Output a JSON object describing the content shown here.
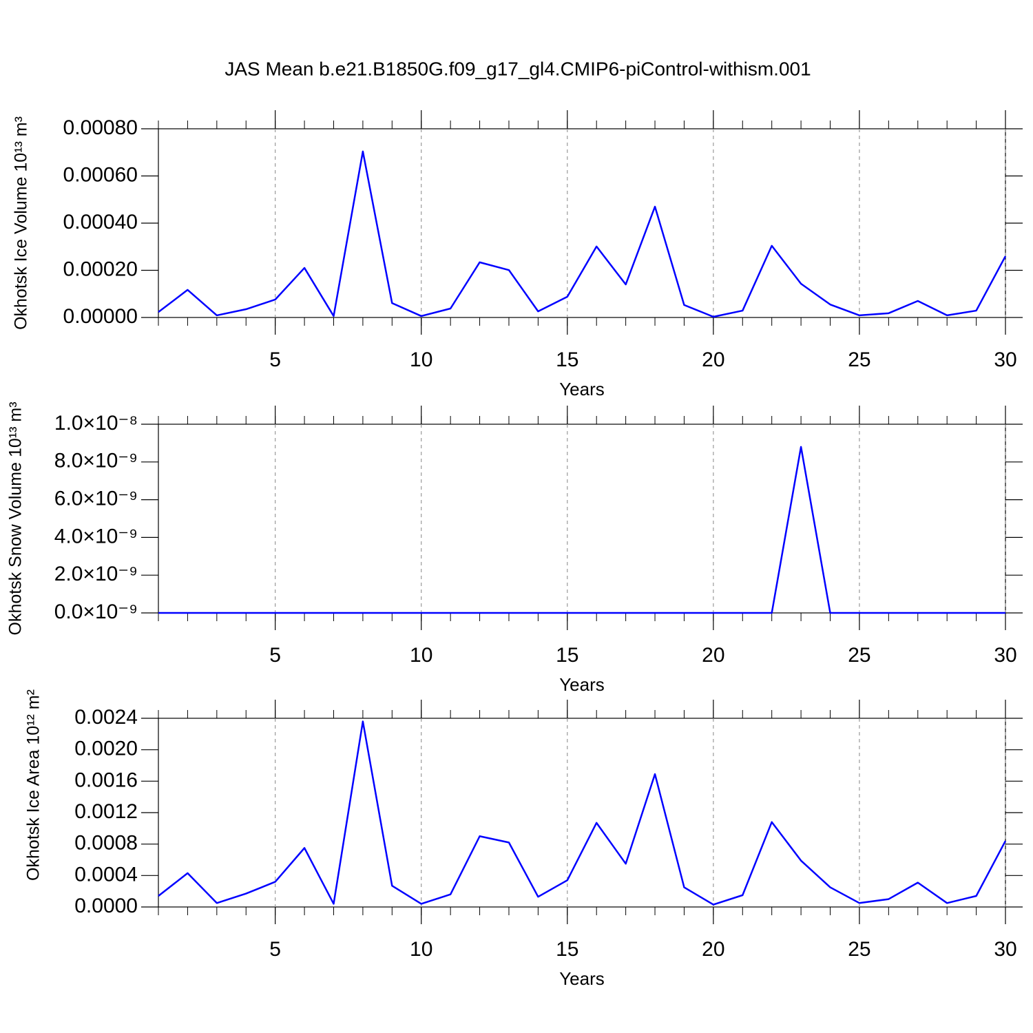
{
  "title": "JAS Mean b.e21.B1850G.f09_g17_gl4.CMIP6-piControl-withism.001",
  "chart_data": [
    {
      "type": "line",
      "y_label": "Okhotsk Ice Volume 10¹³ m³",
      "x_label": "Years",
      "x": [
        1,
        2,
        3,
        4,
        5,
        6,
        7,
        8,
        9,
        10,
        11,
        12,
        13,
        14,
        15,
        16,
        17,
        18,
        19,
        20,
        21,
        22,
        23,
        24,
        25,
        26,
        27,
        28,
        29,
        30
      ],
      "series": [
        {
          "color": "#0000ff",
          "values": [
            2.3e-05,
            0.000117,
            9e-06,
            3.5e-05,
            7.6e-05,
            0.00021,
            6e-06,
            0.000704,
            6.1e-05,
            6e-06,
            3.8e-05,
            0.000234,
            0.000201,
            2.6e-05,
            8.8e-05,
            0.000301,
            0.00014,
            0.00047,
            5.3e-05,
            3e-06,
            2.9e-05,
            0.000304,
            0.000143,
            5.5e-05,
            9e-06,
            1.8e-05,
            7e-05,
            9e-06,
            2.9e-05,
            0.00026
          ]
        }
      ],
      "xlim": [
        1,
        30
      ],
      "xticks": [
        5,
        10,
        15,
        20,
        25,
        30
      ],
      "ylim": [
        0,
        0.0008
      ],
      "yticks": [
        {
          "value": 0,
          "label": "0.00000"
        },
        {
          "value": 0.0002,
          "label": "0.00020"
        },
        {
          "value": 0.0004,
          "label": "0.00040"
        },
        {
          "value": 0.0006,
          "label": "0.00060"
        },
        {
          "value": 0.0008,
          "label": "0.00080"
        }
      ],
      "grid": "x"
    },
    {
      "type": "line",
      "y_label": "Okhotsk Snow Volume 10¹³ m³",
      "x_label": "Years",
      "x": [
        1,
        2,
        3,
        4,
        5,
        6,
        7,
        8,
        9,
        10,
        11,
        12,
        13,
        14,
        15,
        16,
        17,
        18,
        19,
        20,
        21,
        22,
        23,
        24,
        25,
        26,
        27,
        28,
        29,
        30
      ],
      "series": [
        {
          "color": "#0000ff",
          "values": [
            0,
            0,
            0,
            0,
            0,
            0,
            0,
            0,
            0,
            0,
            0,
            0,
            0,
            0,
            0,
            0,
            0,
            0,
            0,
            0,
            0,
            0,
            8.8e-09,
            0,
            0,
            0,
            0,
            0,
            0,
            0
          ]
        }
      ],
      "xlim": [
        1,
        30
      ],
      "xticks": [
        5,
        10,
        15,
        20,
        25,
        30
      ],
      "ylim": [
        0,
        1e-08
      ],
      "yticks": [
        {
          "value": 0,
          "label": "0.0×10⁻⁹"
        },
        {
          "value": 2e-09,
          "label": "2.0×10⁻⁹"
        },
        {
          "value": 4e-09,
          "label": "4.0×10⁻⁹"
        },
        {
          "value": 6e-09,
          "label": "6.0×10⁻⁹"
        },
        {
          "value": 8e-09,
          "label": "8.0×10⁻⁹"
        },
        {
          "value": 1e-08,
          "label": "1.0×10⁻⁸"
        }
      ],
      "grid": "x"
    },
    {
      "type": "line",
      "y_label": "Okhotsk Ice Area 10¹² m²",
      "x_label": "Years",
      "x": [
        1,
        2,
        3,
        4,
        5,
        6,
        7,
        8,
        9,
        10,
        11,
        12,
        13,
        14,
        15,
        16,
        17,
        18,
        19,
        20,
        21,
        22,
        23,
        24,
        25,
        26,
        27,
        28,
        29,
        30
      ],
      "series": [
        {
          "color": "#0000ff",
          "values": [
            0.00014,
            0.00043,
            5e-05,
            0.00017,
            0.00032,
            0.00075,
            4e-05,
            0.00236,
            0.00027,
            4e-05,
            0.00016,
            0.0009,
            0.00082,
            0.00013,
            0.00034,
            0.00107,
            0.00055,
            0.00169,
            0.00025,
            3e-05,
            0.00015,
            0.00108,
            0.00059,
            0.00025,
            5e-05,
            0.0001,
            0.00031,
            5e-05,
            0.00014,
            0.00084
          ]
        }
      ],
      "xlim": [
        1,
        30
      ],
      "xticks": [
        5,
        10,
        15,
        20,
        25,
        30
      ],
      "ylim": [
        0,
        0.0024
      ],
      "yticks": [
        {
          "value": 0,
          "label": "0.0000"
        },
        {
          "value": 0.0004,
          "label": "0.0004"
        },
        {
          "value": 0.0008,
          "label": "0.0008"
        },
        {
          "value": 0.0012,
          "label": "0.0012"
        },
        {
          "value": 0.0016,
          "label": "0.0016"
        },
        {
          "value": 0.002,
          "label": "0.0020"
        },
        {
          "value": 0.0024,
          "label": "0.0024"
        }
      ],
      "grid": "x"
    }
  ]
}
